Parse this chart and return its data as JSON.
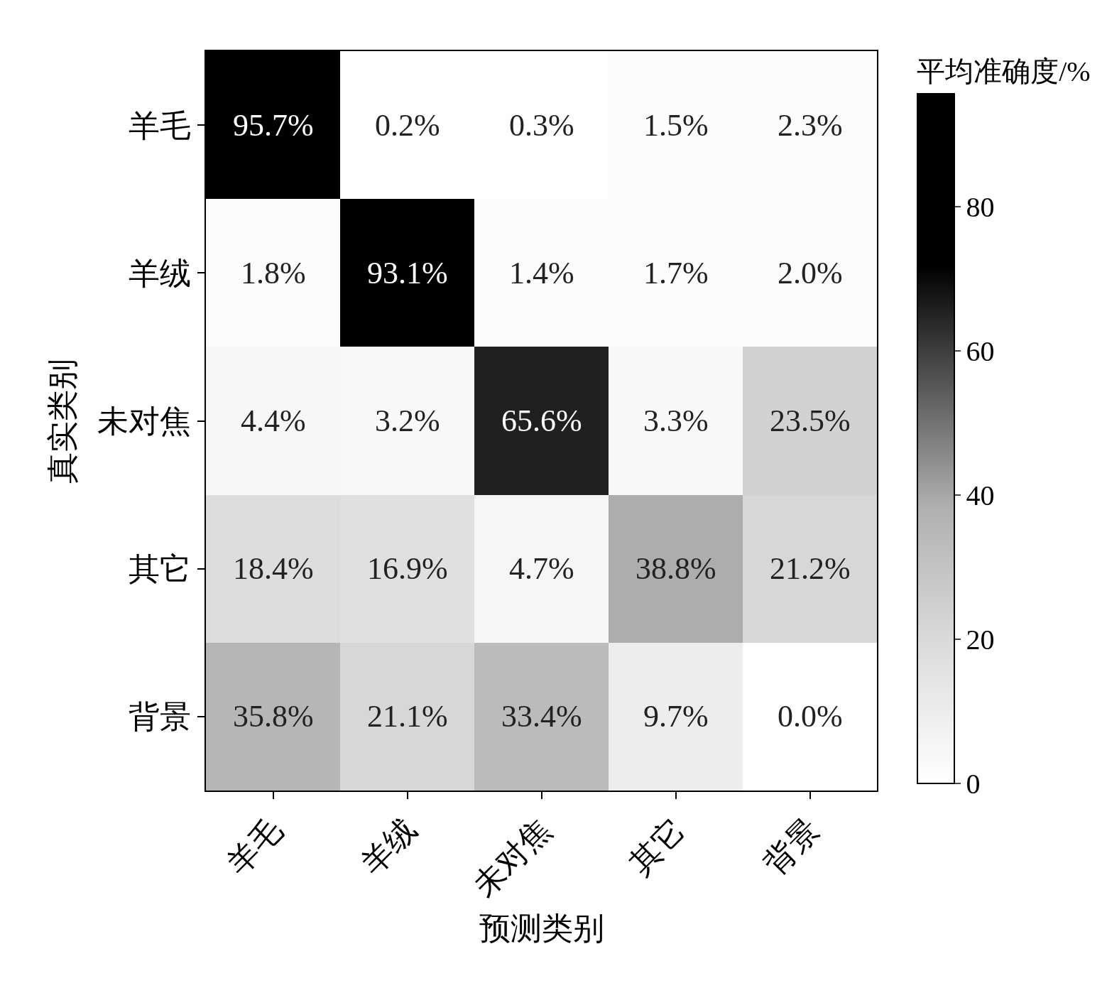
{
  "chart_data": {
    "type": "heatmap",
    "xlabel": "预测类别",
    "ylabel": "真实类别",
    "clabel": "平均准确度/%",
    "categories": [
      "羊毛",
      "羊绒",
      "未对焦",
      "其它",
      "背景"
    ],
    "y_categories": [
      "羊毛",
      "羊绒",
      "未对焦",
      "其它",
      "背景"
    ],
    "cells": [
      [
        95.7,
        0.2,
        0.3,
        1.5,
        2.3
      ],
      [
        1.8,
        93.1,
        1.4,
        1.7,
        2.0
      ],
      [
        4.4,
        3.2,
        65.6,
        3.3,
        23.5
      ],
      [
        18.4,
        16.9,
        4.7,
        38.8,
        21.2
      ],
      [
        35.8,
        21.1,
        33.4,
        9.7,
        0.0
      ]
    ],
    "cell_labels": [
      [
        "95.7%",
        "0.2%",
        "0.3%",
        "1.5%",
        "2.3%"
      ],
      [
        "1.8%",
        "93.1%",
        "1.4%",
        "1.7%",
        "2.0%"
      ],
      [
        "4.4%",
        "3.2%",
        "65.6%",
        "3.3%",
        "23.5%"
      ],
      [
        "18.4%",
        "16.9%",
        "4.7%",
        "38.8%",
        "21.2%"
      ],
      [
        "35.8%",
        "21.1%",
        "33.4%",
        "9.7%",
        "0.0%"
      ]
    ],
    "clim": [
      0,
      95.7
    ],
    "cticks": [
      0,
      20,
      40,
      60,
      80
    ]
  }
}
